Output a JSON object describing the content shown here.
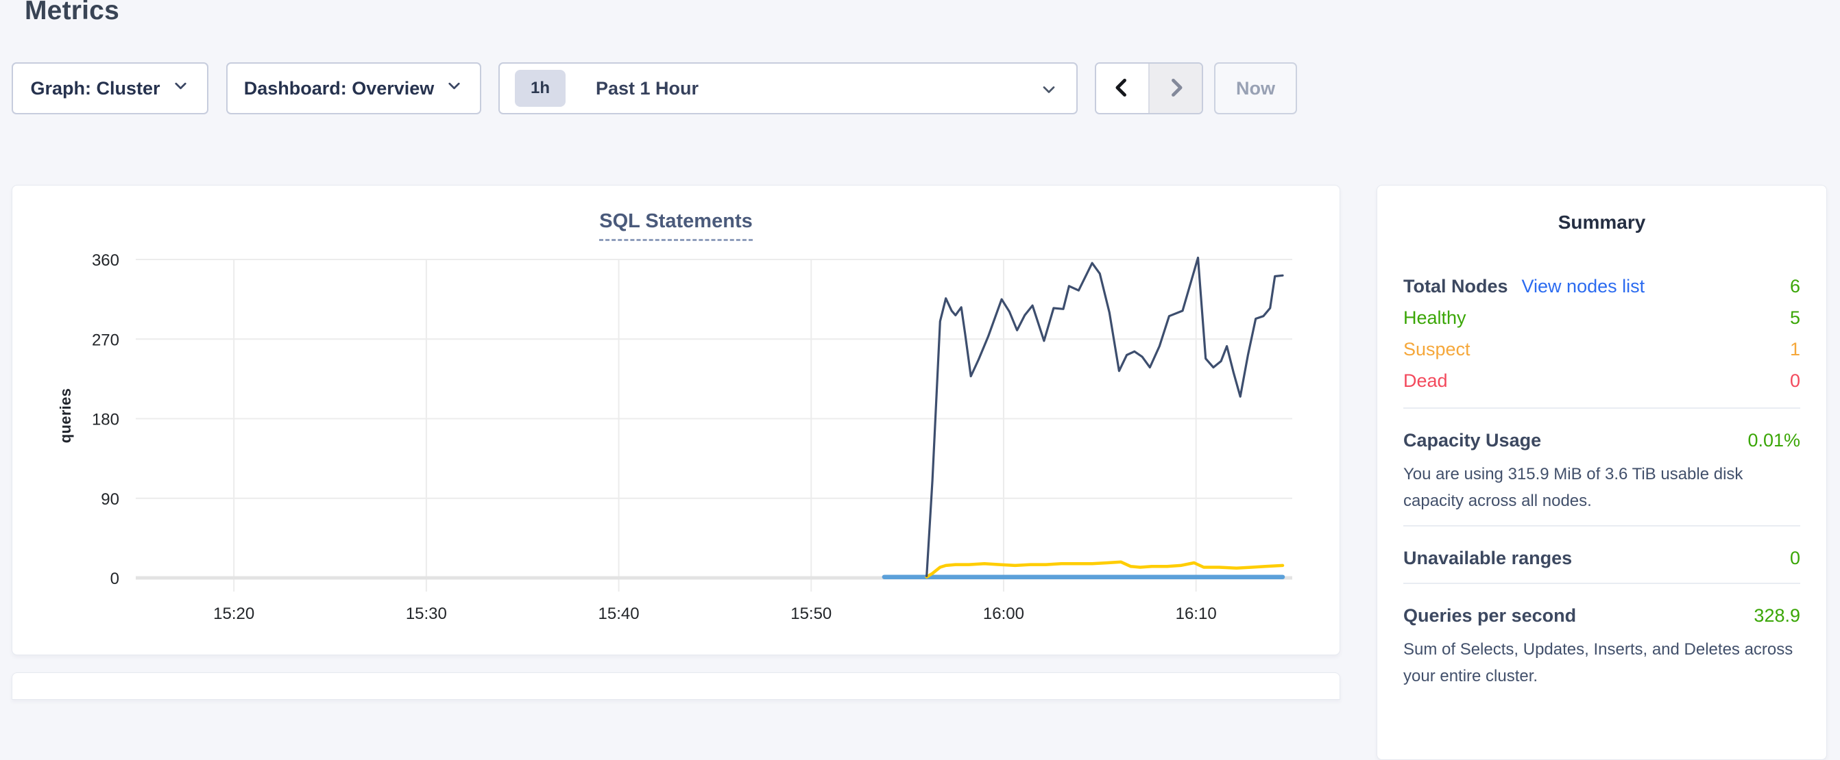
{
  "page": {
    "title": "Metrics",
    "background": "#f5f6fa"
  },
  "toolbar": {
    "graph_dropdown": {
      "label": "Graph: Cluster"
    },
    "dashboard_dropdown": {
      "label": "Dashboard: Overview"
    },
    "time_selector": {
      "badge": "1h",
      "label": "Past 1 Hour"
    },
    "now_button": "Now"
  },
  "chart_data": {
    "type": "line",
    "title": "SQL Statements",
    "xlabel": "",
    "ylabel": "queries",
    "ylim": [
      0,
      360
    ],
    "y_ticks": [
      0,
      90,
      180,
      270,
      360
    ],
    "x_unit": "minutes after 15:00",
    "xlim": [
      14.9,
      75.0
    ],
    "x_ticks": [
      {
        "m": 20,
        "label": "15:20"
      },
      {
        "m": 30,
        "label": "15:30"
      },
      {
        "m": 40,
        "label": "15:40"
      },
      {
        "m": 50,
        "label": "15:50"
      },
      {
        "m": 60,
        "label": "16:00"
      },
      {
        "m": 70,
        "label": "16:10"
      }
    ],
    "grid": true,
    "legend": "none",
    "series": [
      {
        "name": "light-blue-flat",
        "color": "#5ba0d9",
        "stroke_width": 6.5,
        "points": [
          [
            53.8,
            1
          ],
          [
            74.5,
            1
          ]
        ]
      },
      {
        "name": "yellow",
        "color": "#ffcd00",
        "stroke_width": 4.5,
        "points": [
          [
            56.0,
            1
          ],
          [
            56.3,
            5
          ],
          [
            56.7,
            12
          ],
          [
            57.0,
            14
          ],
          [
            57.5,
            15
          ],
          [
            58.2,
            15
          ],
          [
            59.0,
            16
          ],
          [
            59.8,
            15
          ],
          [
            60.6,
            14
          ],
          [
            61.4,
            15
          ],
          [
            62.2,
            15
          ],
          [
            63.0,
            16
          ],
          [
            63.8,
            16
          ],
          [
            64.6,
            16
          ],
          [
            65.4,
            17
          ],
          [
            66.1,
            18
          ],
          [
            66.6,
            13
          ],
          [
            67.1,
            12
          ],
          [
            67.7,
            13
          ],
          [
            68.5,
            13
          ],
          [
            69.2,
            14
          ],
          [
            69.9,
            17
          ],
          [
            70.4,
            12
          ],
          [
            71.2,
            12
          ],
          [
            72.1,
            11
          ],
          [
            72.9,
            12
          ],
          [
            73.6,
            13
          ],
          [
            74.5,
            14
          ]
        ]
      },
      {
        "name": "dark-blue",
        "color": "#3d4e6e",
        "stroke_width": 3.2,
        "points": [
          [
            56.0,
            2
          ],
          [
            56.3,
            110
          ],
          [
            56.7,
            290
          ],
          [
            57.0,
            316
          ],
          [
            57.3,
            302
          ],
          [
            57.5,
            297
          ],
          [
            57.8,
            306
          ],
          [
            58.0,
            276
          ],
          [
            58.3,
            228
          ],
          [
            58.7,
            247
          ],
          [
            59.2,
            273
          ],
          [
            59.9,
            315
          ],
          [
            60.3,
            301
          ],
          [
            60.7,
            280
          ],
          [
            61.1,
            297
          ],
          [
            61.5,
            308
          ],
          [
            62.1,
            268
          ],
          [
            62.6,
            305
          ],
          [
            63.1,
            304
          ],
          [
            63.4,
            330
          ],
          [
            63.9,
            325
          ],
          [
            64.6,
            356
          ],
          [
            65.0,
            344
          ],
          [
            65.5,
            300
          ],
          [
            66.0,
            234
          ],
          [
            66.4,
            252
          ],
          [
            66.8,
            256
          ],
          [
            67.2,
            250
          ],
          [
            67.6,
            238
          ],
          [
            68.1,
            262
          ],
          [
            68.6,
            296
          ],
          [
            69.3,
            302
          ],
          [
            70.1,
            362
          ],
          [
            70.5,
            248
          ],
          [
            70.9,
            238
          ],
          [
            71.3,
            245
          ],
          [
            71.6,
            262
          ],
          [
            71.95,
            232
          ],
          [
            72.3,
            205
          ],
          [
            72.7,
            252
          ],
          [
            73.1,
            293
          ],
          [
            73.5,
            296
          ],
          [
            73.85,
            305
          ],
          [
            74.1,
            341
          ],
          [
            74.5,
            342
          ]
        ]
      }
    ]
  },
  "summary": {
    "title": "Summary",
    "node_rows": [
      {
        "label": "Total Nodes",
        "link": "View nodes list",
        "value": "6"
      },
      {
        "label": "Healthy",
        "value": "5"
      },
      {
        "label": "Suspect",
        "value": "1"
      },
      {
        "label": "Dead",
        "value": "0"
      }
    ],
    "sections": [
      {
        "label": "Capacity Usage",
        "value": "0.01%",
        "description": "You are using 315.9 MiB of 3.6 TiB usable disk capacity across all nodes."
      },
      {
        "label": "Unavailable ranges",
        "value": "0",
        "description": ""
      },
      {
        "label": "Queries per second",
        "value": "328.9",
        "description": "Sum of Selects, Updates, Inserts, and Deletes across your entire cluster."
      }
    ]
  },
  "colors": {
    "green": "#3aa606",
    "orange": "#f5a73a",
    "red": "#f3495c",
    "link_blue": "#2b6bf0",
    "series_dark_blue": "#3d4e6e",
    "series_yellow": "#ffcd00",
    "series_light_blue": "#5ba0d9"
  }
}
